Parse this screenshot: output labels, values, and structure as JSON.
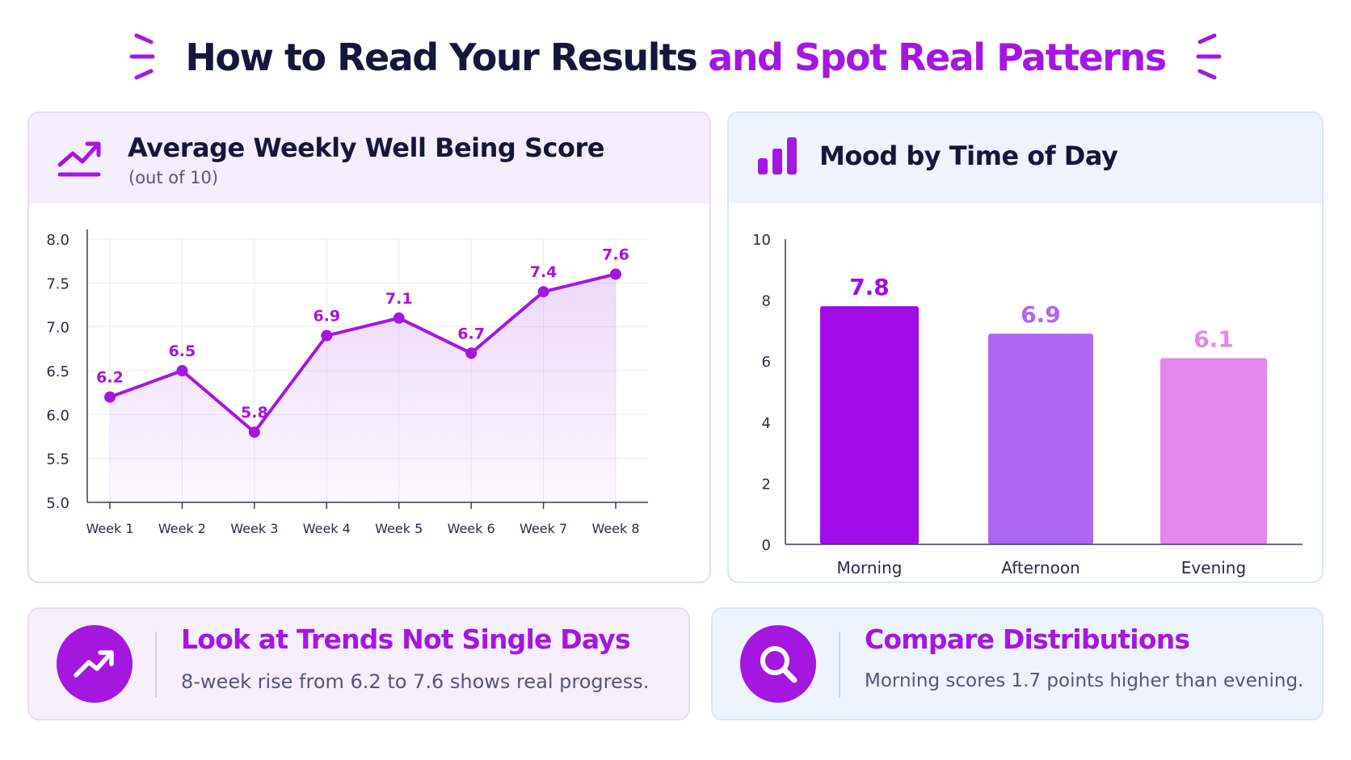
{
  "title": {
    "part1": "How to Read Your Results",
    "part2": "and Spot Real Patterns"
  },
  "colors": {
    "accent": "#a516e0",
    "dark_text": "#15163a",
    "muted_text": "#55557a",
    "bar_morning": "#a00be8",
    "bar_afternoon": "#ae66f0",
    "bar_evening": "#e287ec"
  },
  "line_panel": {
    "icon": "trend-up-icon",
    "title": "Average Weekly Well Being Score",
    "subtitle": "(out of 10)"
  },
  "bar_panel": {
    "icon": "bar-chart-icon",
    "title": "Mood by Time of Day"
  },
  "chart_data": [
    {
      "type": "line",
      "title": "Average Weekly Well Being Score",
      "subtitle": "(out of 10)",
      "categories": [
        "Week 1",
        "Week 2",
        "Week 3",
        "Week 4",
        "Week 5",
        "Week 6",
        "Week 7",
        "Week 8"
      ],
      "values": [
        6.2,
        6.5,
        5.8,
        6.9,
        7.1,
        6.7,
        7.4,
        7.6
      ],
      "data_labels": [
        "6.2",
        "6.5",
        "5.8",
        "6.9",
        "7.1",
        "6.7",
        "7.4",
        "7.6"
      ],
      "ylim": [
        5.0,
        8.0
      ],
      "yticks": [
        "5.0",
        "5.5",
        "6.0",
        "6.5",
        "7.0",
        "7.5",
        "8.0"
      ],
      "grid": true,
      "area_fill": true,
      "xlabel": "",
      "ylabel": ""
    },
    {
      "type": "bar",
      "title": "Mood by Time of Day",
      "categories": [
        "Morning",
        "Afternoon",
        "Evening"
      ],
      "values": [
        7.8,
        6.9,
        6.1
      ],
      "data_labels": [
        "7.8",
        "6.9",
        "6.1"
      ],
      "ylim": [
        0,
        10
      ],
      "yticks": [
        "0",
        "2",
        "4",
        "6",
        "8",
        "10"
      ],
      "grid": false,
      "xlabel": "",
      "ylabel": ""
    }
  ],
  "cards": {
    "trends": {
      "icon": "trend-up-icon",
      "title": "Look at Trends Not Single Days",
      "text": "8-week rise from 6.2 to 7.6 shows real progress."
    },
    "compare": {
      "icon": "search-icon",
      "title": "Compare Distributions",
      "text": "Morning scores 1.7 points higher than evening."
    }
  }
}
